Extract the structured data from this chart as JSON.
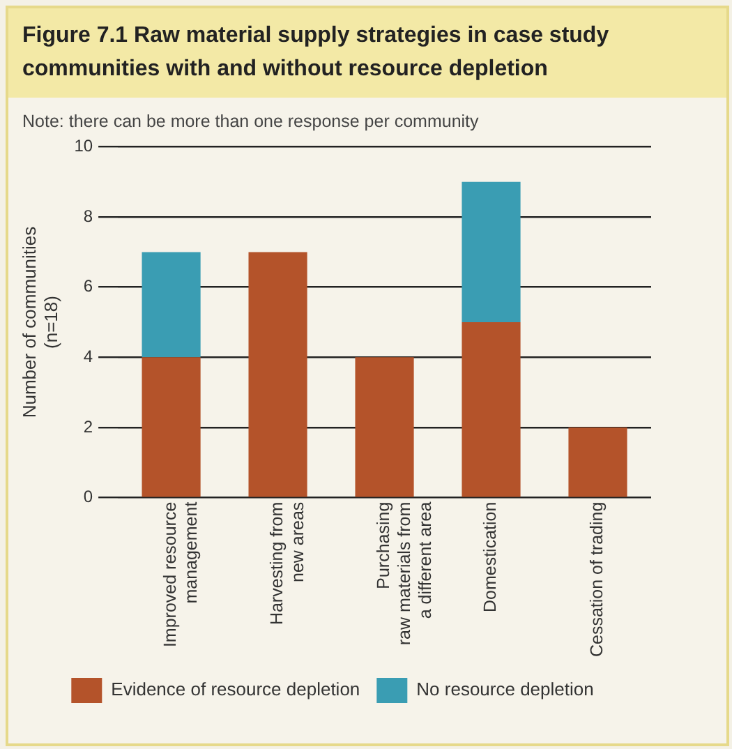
{
  "chart_data": {
    "type": "bar",
    "title": "Figure 7.1  Raw material supply strategies in case study communities with and without resource depletion",
    "annotations": [
      "Note: there can be more than one response per community"
    ],
    "ylabel": "Number of communities\n(n=18)",
    "categories": [
      "Improved resource\nmanagement",
      "Harvesting from\nnew areas",
      "Purchasing\nraw materials from\na different area",
      "Domestication",
      "Cessation of trading"
    ],
    "series": [
      {
        "name": "Evidence of resource depletion",
        "color": "#b4532a",
        "values": [
          4,
          7,
          4,
          5,
          2
        ]
      },
      {
        "name": "No resource depletion",
        "color": "#3a9db3",
        "values": [
          3,
          0,
          0,
          4,
          0
        ]
      }
    ],
    "stacked": true,
    "ylim": [
      0,
      10
    ],
    "yticks": [
      0,
      2,
      4,
      6,
      8,
      10
    ],
    "grid": "y",
    "legend": "bottom"
  }
}
